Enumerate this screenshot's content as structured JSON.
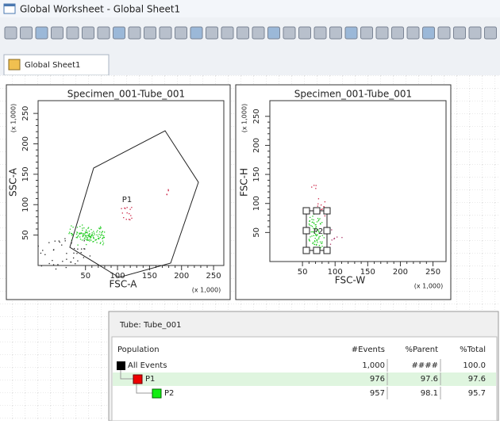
{
  "window": {
    "title": "Global Worksheet - Global Sheet1"
  },
  "tab": {
    "label": "Global Sheet1"
  },
  "plots": [
    {
      "title": "Specimen_001-Tube_001",
      "xlabel": "FSC-A",
      "ylabel": "SSC-A",
      "xmult": "(x 1,000)",
      "ymult": "(x 1,000)",
      "gate": "P1",
      "xticks": [
        50,
        100,
        150,
        200,
        250
      ],
      "yticks": [
        50,
        100,
        150,
        200,
        250
      ],
      "xlim": [
        -24,
        266
      ],
      "ylim": [
        0,
        271
      ]
    },
    {
      "title": "Specimen_001-Tube_001",
      "xlabel": "FSC-W",
      "ylabel": "FSC-H",
      "xmult": "(x 1,000)",
      "ymult": "(x 1,000)",
      "gate": "P2",
      "xticks": [
        50,
        100,
        150,
        200,
        250
      ],
      "yticks": [
        50,
        100,
        150,
        200,
        250
      ],
      "xlim": [
        0,
        270
      ],
      "ylim": [
        0,
        277
      ]
    }
  ],
  "table": {
    "tube": "Tube:  Tube_001",
    "headers": [
      "Population",
      "#Events",
      "%Parent",
      "%Total"
    ],
    "rows": [
      [
        "All Events",
        "1,000",
        "####",
        "100.0"
      ],
      [
        "P1",
        "976",
        "97.6",
        "97.6"
      ],
      [
        "P2",
        "957",
        "98.1",
        "95.7"
      ]
    ]
  }
}
